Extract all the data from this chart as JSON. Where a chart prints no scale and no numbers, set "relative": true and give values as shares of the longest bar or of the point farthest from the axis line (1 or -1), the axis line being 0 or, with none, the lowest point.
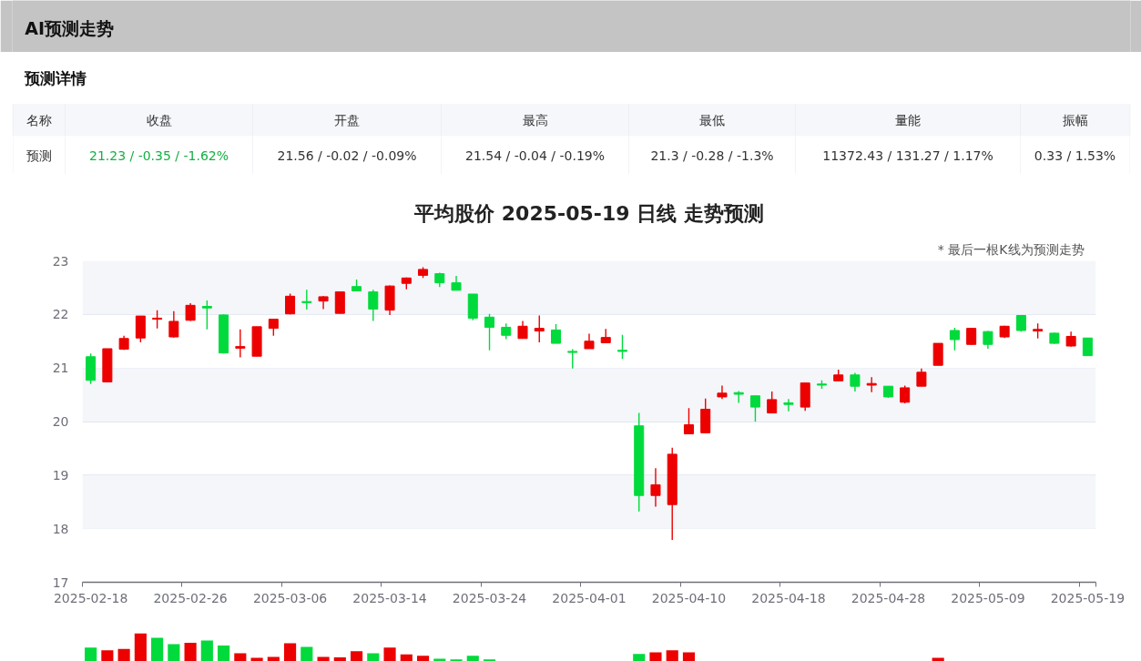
{
  "chart_data": [
    {
      "type": "other",
      "title": "AI预测走势",
      "subtitle": "预测详情",
      "categories": [
        "名称",
        "收盘",
        "开盘",
        "最高",
        "最低",
        "量能",
        "振幅"
      ],
      "annotations": [
        "预测",
        "21.23 / -0.35 / -1.62%",
        "21.56 / -0.02 / -0.09%",
        "21.54 / -0.04 / -0.19%",
        "21.3 / -0.28 / -1.3%",
        "11372.43 / 131.27 / 1.17%",
        "0.33 / 1.53%"
      ]
    },
    {
      "type": "candlestick",
      "title": "平均股价 2025-05-19 日线 走势预测",
      "annotations": [
        "* 最后一根K线为预测走势"
      ],
      "categories": [
        "2025-02-18",
        null,
        null,
        null,
        null,
        null,
        "2025-02-26",
        null,
        null,
        null,
        null,
        null,
        "2025-03-06",
        null,
        null,
        null,
        null,
        null,
        "2025-03-14",
        null,
        null,
        null,
        null,
        null,
        "2025-03-24",
        null,
        null,
        null,
        null,
        null,
        "2025-04-01",
        null,
        null,
        null,
        null,
        null,
        "2025-04-10",
        null,
        null,
        null,
        null,
        null,
        "2025-04-18",
        null,
        null,
        null,
        null,
        null,
        "2025-04-28",
        null,
        null,
        null,
        null,
        null,
        "2025-05-09",
        null,
        null,
        null,
        null,
        null,
        "2025-05-19"
      ],
      "ohlc": [
        [
          21.21,
          21.27,
          20.7,
          20.77
        ],
        [
          20.74,
          21.36,
          20.74,
          21.36
        ],
        [
          21.35,
          21.6,
          21.34,
          21.55
        ],
        [
          21.56,
          21.97,
          21.48,
          21.97
        ],
        [
          21.91,
          22.08,
          21.74,
          21.93
        ],
        [
          21.58,
          22.06,
          21.57,
          21.87
        ],
        [
          21.89,
          22.21,
          21.88,
          22.17
        ],
        [
          22.15,
          22.26,
          21.72,
          22.12
        ],
        [
          21.99,
          22.0,
          21.27,
          21.28
        ],
        [
          21.37,
          21.72,
          21.2,
          21.4
        ],
        [
          21.22,
          21.77,
          21.22,
          21.77
        ],
        [
          21.74,
          21.91,
          21.6,
          21.91
        ],
        [
          22.01,
          22.39,
          22.0,
          22.34
        ],
        [
          22.24,
          22.46,
          22.09,
          22.22
        ],
        [
          22.25,
          22.34,
          22.1,
          22.33
        ],
        [
          22.02,
          22.42,
          22.02,
          22.42
        ],
        [
          22.52,
          22.65,
          22.44,
          22.44
        ],
        [
          22.42,
          22.46,
          21.88,
          22.1
        ],
        [
          22.08,
          22.54,
          21.99,
          22.53
        ],
        [
          22.58,
          22.69,
          22.47,
          22.68
        ],
        [
          22.73,
          22.88,
          22.68,
          22.84
        ],
        [
          22.76,
          22.78,
          22.51,
          22.59
        ],
        [
          22.59,
          22.72,
          22.45,
          22.45
        ],
        [
          22.38,
          22.38,
          21.89,
          21.93
        ],
        [
          21.95,
          22.01,
          21.33,
          21.76
        ],
        [
          21.76,
          21.83,
          21.54,
          21.61
        ],
        [
          21.55,
          21.88,
          21.55,
          21.78
        ],
        [
          21.69,
          21.98,
          21.48,
          21.74
        ],
        [
          21.71,
          21.82,
          21.46,
          21.46
        ],
        [
          21.31,
          21.35,
          20.99,
          21.29
        ],
        [
          21.36,
          21.64,
          21.36,
          21.5
        ],
        [
          21.47,
          21.73,
          21.47,
          21.57
        ],
        [
          21.33,
          21.62,
          21.17,
          21.31
        ],
        [
          19.92,
          20.16,
          18.32,
          18.62
        ],
        [
          18.62,
          19.13,
          18.41,
          18.82
        ],
        [
          18.45,
          19.51,
          17.79,
          19.39
        ],
        [
          19.77,
          20.25,
          19.77,
          19.94
        ],
        [
          19.79,
          20.43,
          19.79,
          20.23
        ],
        [
          20.46,
          20.67,
          20.42,
          20.53
        ],
        [
          20.54,
          20.57,
          20.35,
          20.51
        ],
        [
          20.48,
          20.48,
          20.0,
          20.27
        ],
        [
          20.16,
          20.56,
          20.16,
          20.41
        ],
        [
          20.35,
          20.42,
          20.19,
          20.32
        ],
        [
          20.27,
          20.72,
          20.2,
          20.72
        ],
        [
          20.7,
          20.77,
          20.61,
          20.68
        ],
        [
          20.76,
          20.97,
          20.76,
          20.87
        ],
        [
          20.87,
          20.91,
          20.56,
          20.66
        ],
        [
          20.68,
          20.83,
          20.55,
          20.71
        ],
        [
          20.66,
          20.66,
          20.44,
          20.46
        ],
        [
          20.36,
          20.67,
          20.34,
          20.63
        ],
        [
          20.66,
          20.99,
          20.66,
          20.92
        ],
        [
          21.05,
          21.46,
          21.05,
          21.46
        ],
        [
          21.7,
          21.75,
          21.33,
          21.53
        ],
        [
          21.44,
          21.74,
          21.43,
          21.74
        ],
        [
          21.68,
          21.69,
          21.36,
          21.44
        ],
        [
          21.58,
          21.79,
          21.56,
          21.78
        ],
        [
          21.98,
          21.99,
          21.68,
          21.7
        ],
        [
          21.69,
          21.83,
          21.55,
          21.72
        ],
        [
          21.65,
          21.66,
          21.45,
          21.46
        ],
        [
          21.41,
          21.68,
          21.4,
          21.59
        ],
        [
          21.56,
          21.56,
          21.23,
          21.23
        ]
      ],
      "colors": [
        "#00da3c",
        "#ec0000",
        "#ec0000",
        "#ec0000",
        "#ec0000",
        "#ec0000",
        "#ec0000",
        "#00da3c",
        "#00da3c",
        "#ec0000",
        "#ec0000",
        "#ec0000",
        "#ec0000",
        "#00da3c",
        "#ec0000",
        "#ec0000",
        "#00da3c",
        "#00da3c",
        "#ec0000",
        "#ec0000",
        "#ec0000",
        "#00da3c",
        "#00da3c",
        "#00da3c",
        "#00da3c",
        "#00da3c",
        "#ec0000",
        "#ec0000",
        "#00da3c",
        "#00da3c",
        "#ec0000",
        "#ec0000",
        "#00da3c",
        "#00da3c",
        "#ec0000",
        "#ec0000",
        "#ec0000",
        "#ec0000",
        "#ec0000",
        "#00da3c",
        "#00da3c",
        "#ec0000",
        "#00da3c",
        "#ec0000",
        "#00da3c",
        "#ec0000",
        "#00da3c",
        "#ec0000",
        "#00da3c",
        "#ec0000",
        "#ec0000",
        "#ec0000",
        "#00da3c",
        "#ec0000",
        "#00da3c",
        "#ec0000",
        "#00da3c",
        "#ec0000",
        "#00da3c",
        "#ec0000",
        "#00da3c"
      ],
      "ylim": [
        17,
        23
      ],
      "yticks": [
        17,
        18,
        19,
        20,
        21,
        22,
        23
      ],
      "grid": "y",
      "bands": [
        {
          "axis": "y",
          "from": 18,
          "to": 19,
          "color": "#f4f6fa"
        },
        {
          "axis": "y",
          "from": 20,
          "to": 21,
          "color": "#f4f6fa"
        },
        {
          "axis": "y",
          "from": 22,
          "to": 23,
          "color": "#f4f6fa"
        }
      ]
    },
    {
      "type": "bar",
      "relative": true,
      "categories": [
        null,
        null,
        null,
        null,
        null,
        null,
        null,
        null,
        null,
        null,
        null,
        null,
        null,
        null,
        null,
        null,
        null,
        null,
        null,
        null,
        null,
        null,
        null,
        null,
        null,
        null,
        null,
        null,
        null,
        null,
        null,
        null,
        null,
        null,
        null,
        null,
        null,
        null,
        null,
        null,
        null,
        null,
        null,
        null,
        null,
        null,
        null,
        null,
        null,
        null,
        null,
        null,
        null,
        null,
        null,
        null,
        null,
        null,
        null,
        null,
        null
      ],
      "values": [
        0.5,
        0.4,
        0.45,
        1,
        0.85,
        0.62,
        0.67,
        0.75,
        0.57,
        0.29,
        0.13,
        0.16,
        0.65,
        0.52,
        0.16,
        0.15,
        0.37,
        0.29,
        0.5,
        0.25,
        0.2,
        0.1,
        0.07,
        0.2,
        0.07,
        null,
        null,
        null,
        null,
        null,
        null,
        null,
        null,
        0.27,
        0.33,
        0.4,
        0.33,
        null,
        null,
        null,
        null,
        null,
        null,
        null,
        null,
        null,
        null,
        null,
        null,
        null,
        null,
        0.13,
        null,
        null,
        null,
        null,
        null,
        null,
        null,
        null,
        null
      ],
      "colors": [
        "#00da3c",
        "#ec0000",
        "#ec0000",
        "#ec0000",
        "#00da3c",
        "#00da3c",
        "#ec0000",
        "#00da3c",
        "#00da3c",
        "#ec0000",
        "#ec0000",
        "#ec0000",
        "#ec0000",
        "#00da3c",
        "#ec0000",
        "#ec0000",
        "#ec0000",
        "#00da3c",
        "#ec0000",
        "#ec0000",
        "#ec0000",
        "#00da3c",
        "#00da3c",
        "#00da3c",
        "#00da3c",
        "#00da3c",
        "#ec0000",
        "#ec0000",
        "#00da3c",
        "#00da3c",
        "#ec0000",
        "#ec0000",
        "#00da3c",
        "#00da3c",
        "#ec0000",
        "#ec0000",
        "#ec0000",
        "#ec0000",
        "#ec0000",
        "#00da3c",
        "#00da3c",
        "#ec0000",
        "#00da3c",
        "#ec0000",
        "#00da3c",
        "#ec0000",
        "#00da3c",
        "#ec0000",
        "#00da3c",
        "#ec0000",
        "#ec0000",
        "#ec0000",
        "#00da3c",
        "#ec0000",
        "#00da3c",
        "#ec0000",
        "#00da3c",
        "#ec0000",
        "#00da3c",
        "#ec0000",
        "#00da3c"
      ]
    }
  ]
}
